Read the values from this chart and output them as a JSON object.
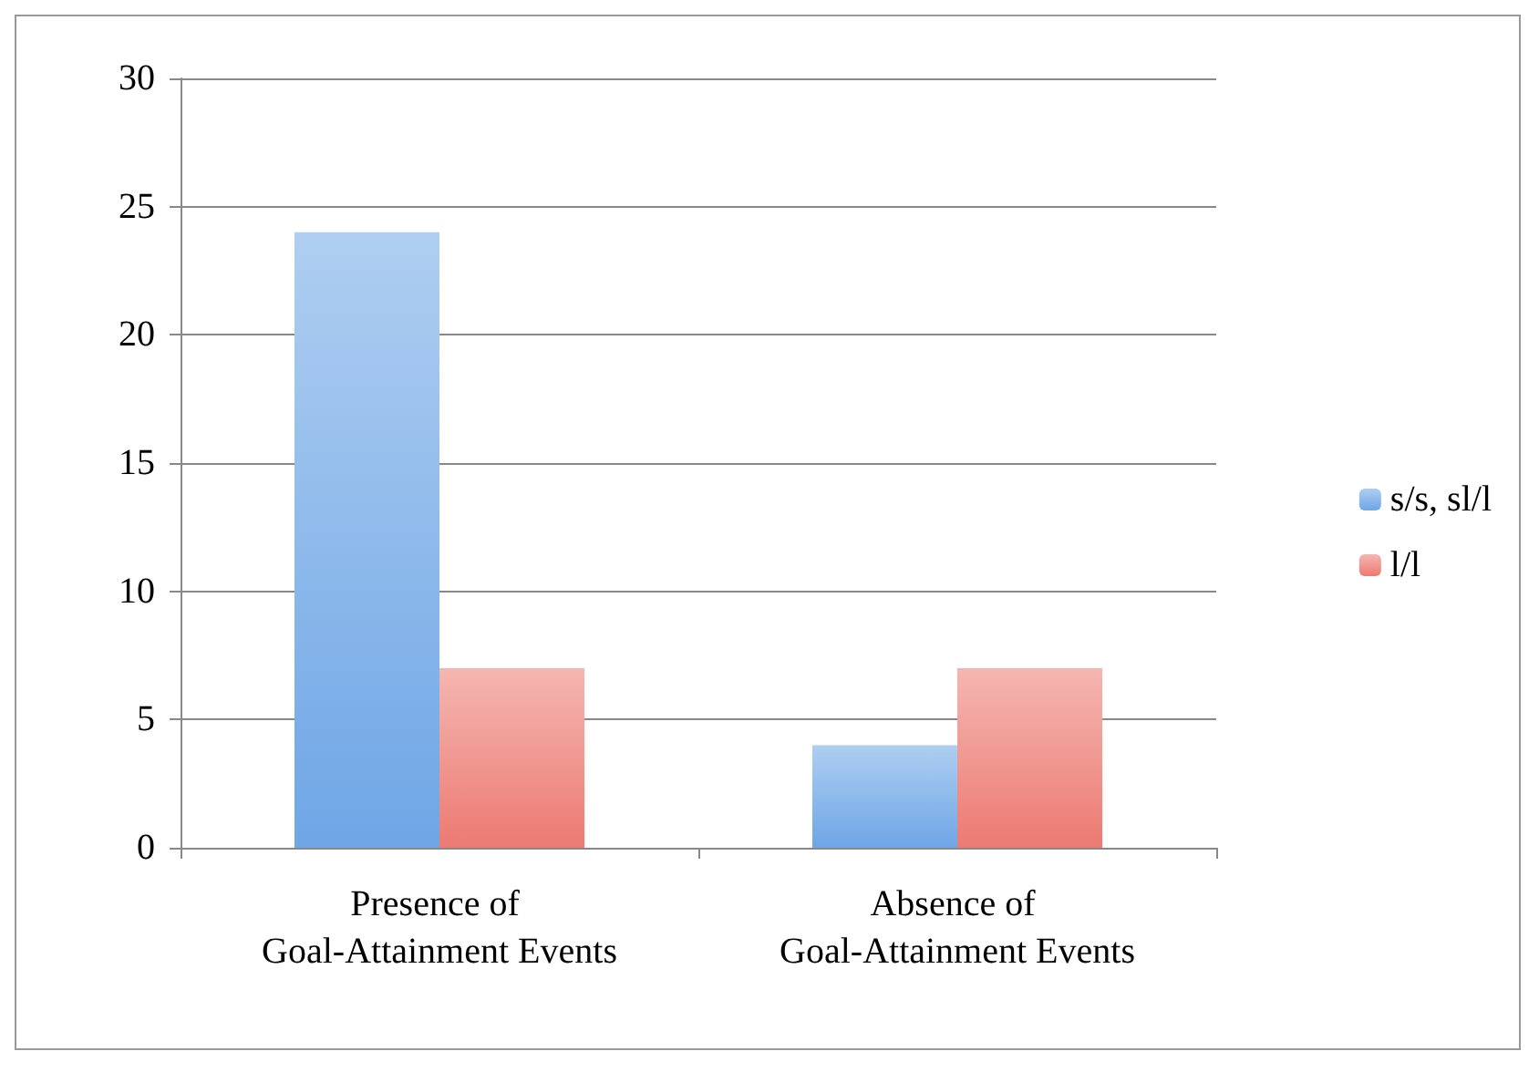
{
  "chart_data": {
    "type": "bar",
    "categories": [
      "Presence of Goal-Attainment Events",
      "Absence of Goal-Attainment Events"
    ],
    "series": [
      {
        "name": "s/s, sl/l",
        "color": "#6ea6e6",
        "values": [
          24,
          4
        ]
      },
      {
        "name": "l/l",
        "color": "#ec7a72",
        "values": [
          7,
          7
        ]
      }
    ],
    "ylim": [
      0,
      30
    ],
    "yticks": [
      0,
      5,
      10,
      15,
      20,
      25,
      30
    ],
    "grid": "y",
    "legend": "right"
  }
}
